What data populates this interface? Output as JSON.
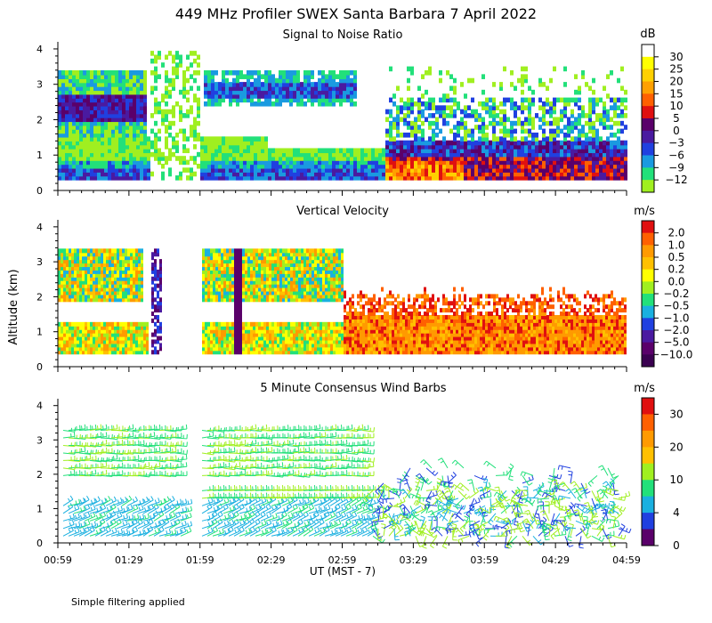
{
  "title": "449 MHz Profiler SWEX Santa Barbara  7 April 2022",
  "footnote": "Simple filtering applied",
  "y_axis_label": "Altitude (km)",
  "x_axis_label": "UT  (MST - 7)",
  "time_ticks": [
    "00:59",
    "01:29",
    "01:59",
    "02:29",
    "02:59",
    "03:29",
    "03:59",
    "04:29",
    "04:59"
  ],
  "altitude_ticks": [
    "0",
    "1",
    "2",
    "3",
    "4"
  ],
  "panels": [
    {
      "title": "Signal to Noise Ratio",
      "unit": "dB",
      "labels": [
        "30",
        "25",
        "20",
        "15",
        "10",
        "5",
        "0",
        "−3",
        "−6",
        "−9",
        "−12"
      ],
      "colors": [
        "#ffffff",
        "#ffff00",
        "#ffd000",
        "#ffa000",
        "#ff6000",
        "#e01010",
        "#5a006a",
        "#4a1aa0",
        "#2040e0",
        "#1a9ae0",
        "#22e07a",
        "#a0ef20"
      ]
    },
    {
      "title": "Vertical Velocity",
      "unit": "m/s",
      "labels": [
        "2.0",
        "1.0",
        "0.5",
        "0.2",
        "0.0",
        "−0.2",
        "−0.5",
        "−1.0",
        "−2.0",
        "−5.0",
        "−10.0"
      ],
      "colors": [
        "#e01010",
        "#ff6000",
        "#ff9a00",
        "#ffc000",
        "#ffff00",
        "#a0ef20",
        "#22e07a",
        "#1ab0e0",
        "#2040e0",
        "#4a1aa0",
        "#5a006a",
        "#3a0050"
      ]
    },
    {
      "title": "5 Minute Consensus Wind Barbs",
      "unit": "m/s",
      "labels": [
        "30",
        "",
        "20",
        "",
        "10",
        "",
        "4",
        "",
        "0"
      ],
      "colors": [
        "#e01010",
        "#ff6000",
        "#ff9a00",
        "#ffc000",
        "#a0ef20",
        "#22e07a",
        "#1ab0e0",
        "#2040e0",
        "#5a006a"
      ]
    }
  ],
  "chart_data": [
    {
      "type": "heatmap",
      "title": "Signal to Noise Ratio",
      "unit": "dB",
      "x": [
        "00:59",
        "01:29",
        "01:59",
        "02:29",
        "02:59",
        "03:29",
        "03:59",
        "04:29",
        "04:59"
      ],
      "ylim": [
        0,
        4
      ],
      "ylabel": "Altitude (km)",
      "xlabel": "UT  (MST - 7)",
      "colorbar": [
        "30",
        "25",
        "20",
        "15",
        "10",
        "5",
        "0",
        "-3",
        "-6",
        "-9",
        "-12"
      ]
    },
    {
      "type": "heatmap",
      "title": "Vertical Velocity",
      "unit": "m/s",
      "x": [
        "00:59",
        "01:29",
        "01:59",
        "02:29",
        "02:59",
        "03:29",
        "03:59",
        "04:29",
        "04:59"
      ],
      "ylim": [
        0,
        4
      ],
      "ylabel": "Altitude (km)",
      "colorbar": [
        "2.0",
        "1.0",
        "0.5",
        "0.2",
        "0.0",
        "-0.2",
        "-0.5",
        "-1.0",
        "-2.0",
        "-5.0",
        "-10.0"
      ]
    },
    {
      "type": "scatter",
      "title": "5 Minute Consensus Wind Barbs",
      "unit": "m/s",
      "x": [
        "00:59",
        "01:29",
        "01:59",
        "02:29",
        "02:59",
        "03:29",
        "03:59",
        "04:29",
        "04:59"
      ],
      "ylim": [
        0,
        4
      ],
      "ylabel": "Altitude (km)",
      "xlabel": "UT  (MST - 7)",
      "colorbar": [
        "30",
        "20",
        "10",
        "4",
        "0"
      ]
    }
  ]
}
